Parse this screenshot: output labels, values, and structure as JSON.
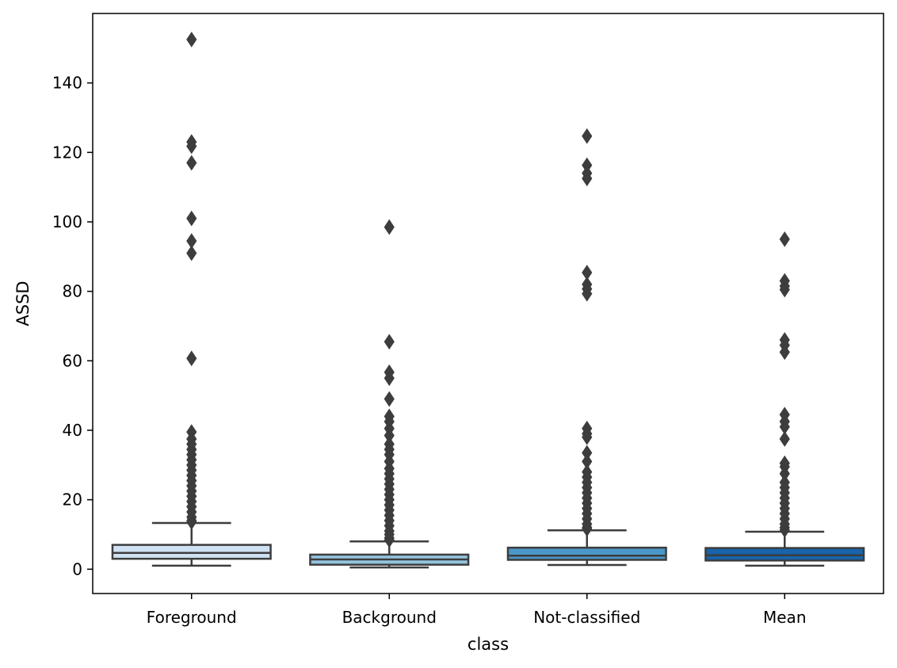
{
  "chart_data": {
    "type": "box",
    "xlabel": "class",
    "ylabel": "ASSD",
    "ylim": [
      -7,
      160
    ],
    "yticks": [
      0,
      20,
      40,
      60,
      80,
      100,
      120,
      140
    ],
    "categories": [
      "Foreground",
      "Background",
      "Not-classified",
      "Mean"
    ],
    "colors": [
      "#cfe1f2",
      "#94c4df",
      "#4a98c9",
      "#1764ab"
    ],
    "grid": false,
    "boxes": [
      {
        "category": "Foreground",
        "whisker_low": 1.0,
        "q1": 3.0,
        "median": 4.7,
        "q3": 7.0,
        "whisker_high": 13.3,
        "outliers": [
          152.5,
          123.0,
          121.8,
          117.0,
          101.0,
          94.5,
          91.0,
          60.7,
          39.5,
          37.5,
          36.0,
          34.5,
          33.0,
          31.5,
          30.0,
          28.5,
          27.0,
          25.5,
          24.0,
          22.5,
          21.0,
          19.5,
          18.0,
          16.5,
          15.0,
          14.0,
          13.6
        ]
      },
      {
        "category": "Background",
        "whisker_low": 0.5,
        "q1": 1.3,
        "median": 2.8,
        "q3": 4.2,
        "whisker_high": 8.0,
        "outliers": [
          98.5,
          65.5,
          56.7,
          55.0,
          49.0,
          44.0,
          42.5,
          40.5,
          38.5,
          36.0,
          34.5,
          33.0,
          31.0,
          29.0,
          27.5,
          26.0,
          24.5,
          23.0,
          21.5,
          20.0,
          18.5,
          17.0,
          15.5,
          14.0,
          12.5,
          11.0,
          10.0,
          9.0,
          8.4
        ]
      },
      {
        "category": "Not-classified",
        "whisker_low": 1.2,
        "q1": 2.7,
        "median": 3.9,
        "q3": 6.2,
        "whisker_high": 11.2,
        "outliers": [
          124.7,
          116.3,
          114.0,
          112.5,
          85.4,
          82.0,
          80.7,
          79.3,
          40.5,
          39.0,
          38.0,
          33.5,
          31.0,
          28.0,
          26.5,
          25.0,
          23.5,
          22.0,
          20.5,
          19.0,
          17.5,
          16.0,
          14.5,
          13.0,
          12.0,
          11.6
        ]
      },
      {
        "category": "Mean",
        "whisker_low": 1.0,
        "q1": 2.5,
        "median": 4.0,
        "q3": 6.1,
        "whisker_high": 10.8,
        "outliers": [
          95.0,
          83.0,
          81.5,
          80.5,
          66.0,
          64.5,
          62.5,
          44.5,
          42.5,
          41.0,
          37.5,
          30.5,
          29.5,
          27.5,
          25.0,
          23.5,
          22.0,
          20.5,
          19.0,
          17.5,
          16.0,
          14.5,
          13.0,
          12.0,
          11.3
        ]
      }
    ]
  }
}
